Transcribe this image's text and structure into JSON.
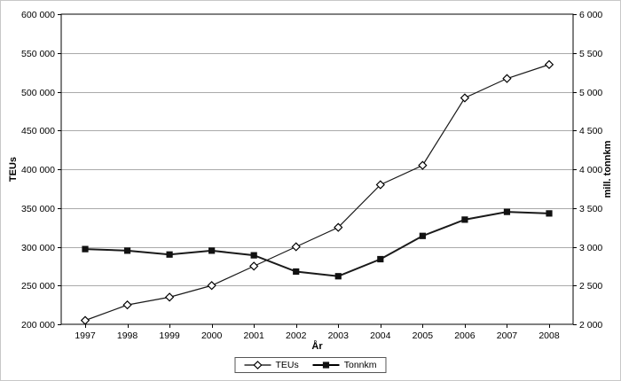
{
  "chart_data": {
    "type": "line",
    "categories": [
      "1997",
      "1998",
      "1999",
      "2000",
      "2001",
      "2002",
      "2003",
      "2004",
      "2005",
      "2006",
      "2007",
      "2008"
    ],
    "series": [
      {
        "name": "TEUs",
        "axis": "left",
        "marker": "diamond-open",
        "values": [
          205000,
          225000,
          235000,
          250000,
          275000,
          300000,
          325000,
          380000,
          405000,
          492000,
          517000,
          535000
        ]
      },
      {
        "name": "Tonnkm",
        "axis": "right",
        "marker": "square-filled",
        "values": [
          2970,
          2950,
          2900,
          2950,
          2890,
          2680,
          2620,
          2840,
          3140,
          3350,
          3450,
          3430
        ]
      }
    ],
    "xlabel": "År",
    "ylabel_left": "TEUs",
    "ylabel_right": "mill. tonnkm",
    "ylim_left": [
      200000,
      600000
    ],
    "ylim_right": [
      2000,
      6000
    ],
    "yticks_left": [
      "200 000",
      "250 000",
      "300 000",
      "350 000",
      "400 000",
      "450 000",
      "500 000",
      "550 000",
      "600 000"
    ],
    "yticks_right": [
      "2 000",
      "2 500",
      "3 000",
      "3 500",
      "4 000",
      "4 500",
      "5 000",
      "5 500",
      "6 000"
    ],
    "grid": "horizontal",
    "legend_position": "bottom",
    "colors": {
      "line": "#1a1a1a",
      "grid": "#aaaaaa",
      "axis": "#000000",
      "background": "#ffffff"
    }
  }
}
